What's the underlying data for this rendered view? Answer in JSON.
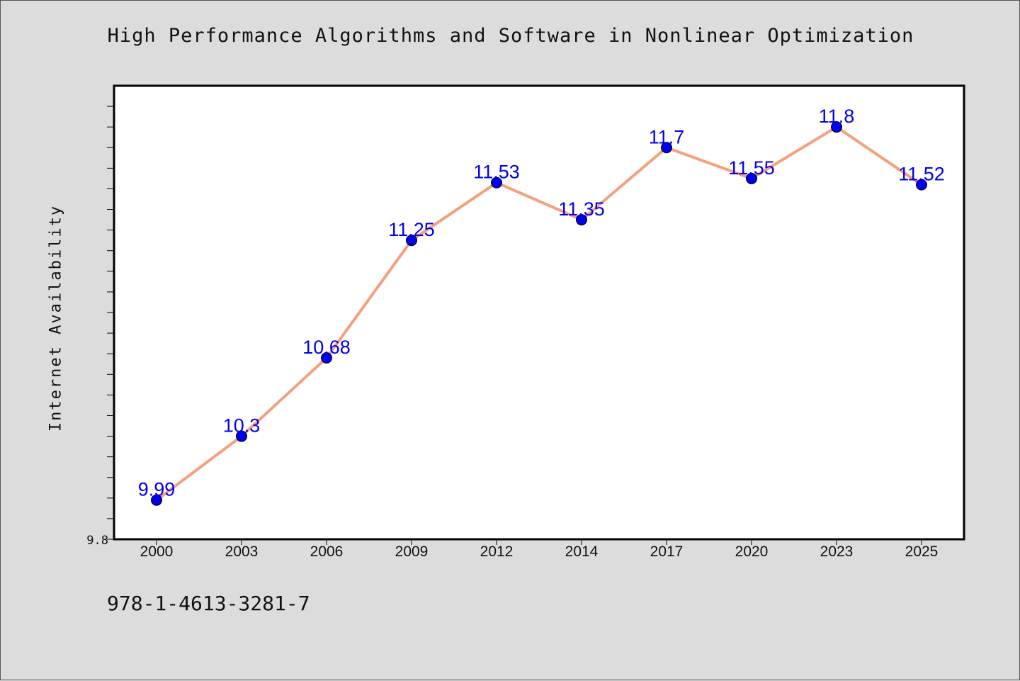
{
  "chart_data": {
    "type": "line",
    "title": "High Performance Algorithms and Software in Nonlinear Optimization",
    "xlabel": "",
    "ylabel": "Internet Availability",
    "categories": [
      "2000",
      "2003",
      "2006",
      "2009",
      "2012",
      "2014",
      "2017",
      "2020",
      "2023",
      "2025"
    ],
    "series": [
      {
        "values": [
          9.99,
          10.3,
          10.68,
          11.25,
          11.53,
          11.35,
          11.7,
          11.55,
          11.8,
          11.52
        ],
        "data_labels": [
          "9.99",
          "10.3",
          "10.68",
          "11.25",
          "11.53",
          "11.35",
          "11.7",
          "11.55",
          "11.8",
          "11.52"
        ],
        "line_color": "#f4a07e",
        "marker_color": "#0000ee"
      }
    ],
    "ylim": [
      9.8,
      12.0
    ],
    "y_tick_labels": [
      "9.8"
    ],
    "label_color": "#0000ee",
    "grid": false,
    "legend": "none"
  },
  "note": "978-1-4613-3281-7"
}
